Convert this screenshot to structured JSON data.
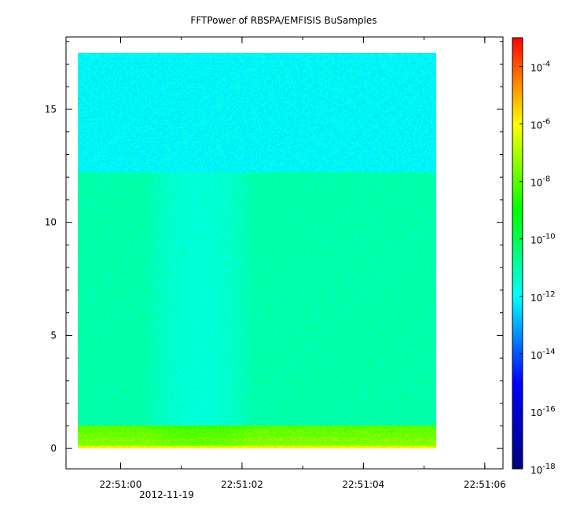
{
  "chart_data": {
    "type": "heatmap",
    "title": "FFTPower of RBSPA/EMFISIS  BuSamples",
    "xlabel": "",
    "ylabel": "",
    "x_range": [
      "22:50:59.1",
      "22:51:06.3"
    ],
    "x_ticks": [
      "22:51:00",
      "22:51:02",
      "22:51:04",
      "22:51:06"
    ],
    "x_date_label": "2012-11-19",
    "ylim": [
      -0.9,
      18.2
    ],
    "y_ticks": [
      0,
      5,
      10,
      15
    ],
    "data_extent": {
      "x": [
        "22:50:59.3",
        "22:51:05.2"
      ],
      "y": [
        0,
        17.5
      ]
    },
    "colorbar": {
      "scale": "log",
      "range": [
        1e-18,
        0.001
      ],
      "ticks": [
        {
          "base": "10",
          "exp": "-18"
        },
        {
          "base": "10",
          "exp": "-16"
        },
        {
          "base": "10",
          "exp": "-14"
        },
        {
          "base": "10",
          "exp": "-12"
        },
        {
          "base": "10",
          "exp": "-10"
        },
        {
          "base": "10",
          "exp": "-8"
        },
        {
          "base": "10",
          "exp": "-6"
        },
        {
          "base": "10",
          "exp": "-4"
        }
      ],
      "colors": [
        "#000080",
        "#0000ff",
        "#00ffff",
        "#00ff00",
        "#ffff00",
        "#ff0000"
      ]
    },
    "features": [
      {
        "y": [
          12.2,
          17.5
        ],
        "level": 1e-12
      },
      {
        "y": [
          1.0,
          12.2
        ],
        "level": 1e-11
      },
      {
        "y": [
          0.1,
          1.0
        ],
        "level": 1e-08
      },
      {
        "y": [
          0,
          0.1
        ],
        "level": 1e-06
      }
    ]
  }
}
